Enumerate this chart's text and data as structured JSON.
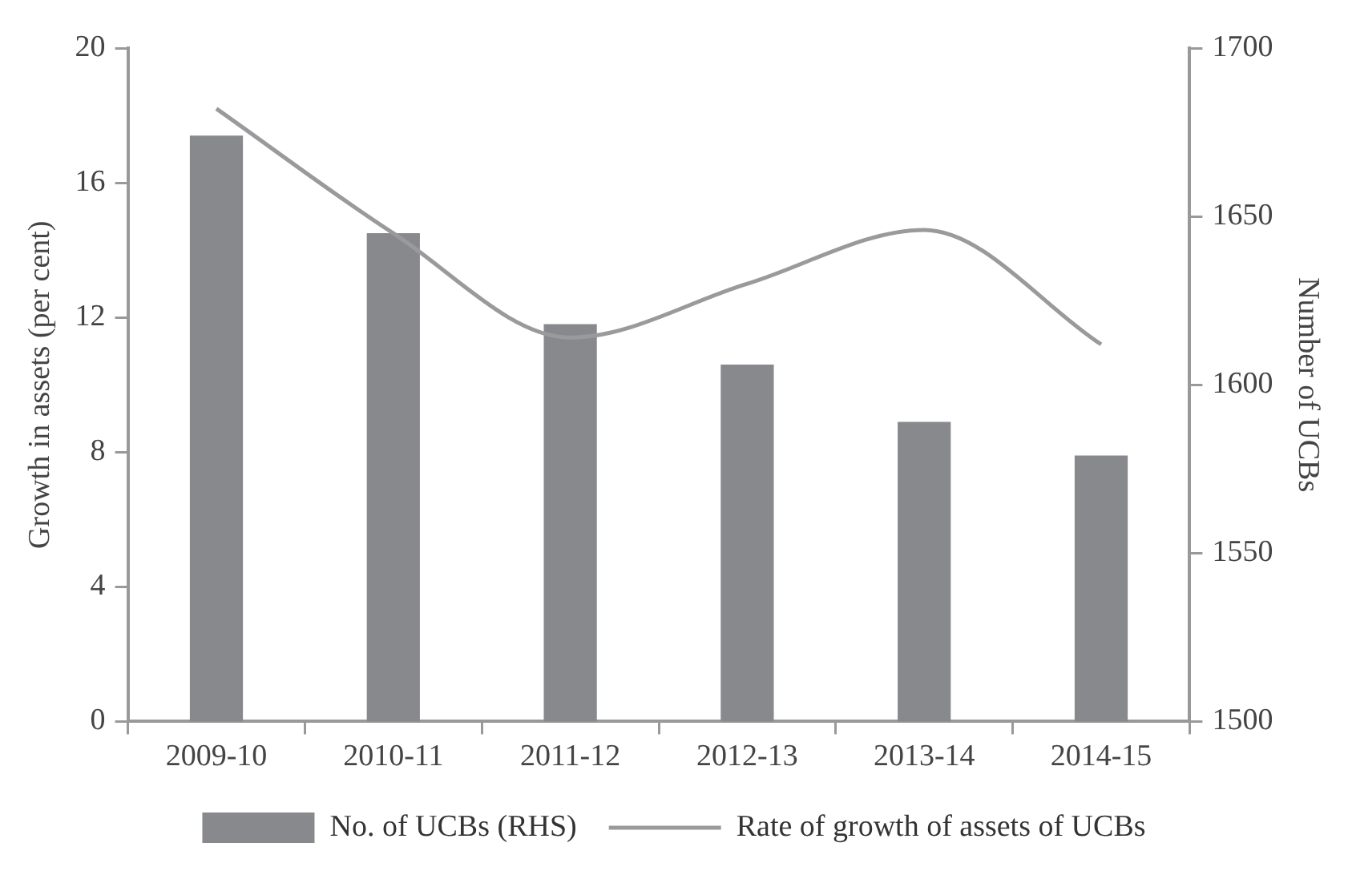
{
  "chart_data": {
    "type": "bar",
    "categories": [
      "2009-10",
      "2010-11",
      "2011-12",
      "2012-13",
      "2013-14",
      "2014-15"
    ],
    "ylabel": "Growth in assets (per cent)",
    "y2label": "Number of UCBs",
    "series": [
      {
        "name": "No. of UCBs (RHS)",
        "axis": "y2",
        "color": "#88898d",
        "values": [
          1674,
          1645,
          1618,
          1606,
          1589,
          1579
        ]
      },
      {
        "name": "Rate of growth of assets of UCBs",
        "type": "line",
        "color": "#9a9a9c",
        "values": [
          18.2,
          14.5,
          11.4,
          13.0,
          14.6,
          11.2
        ]
      }
    ],
    "ylim": [
      0,
      20
    ],
    "yticks": [
      0,
      4,
      8,
      12,
      16,
      20
    ],
    "y2lim": [
      1500,
      1700
    ],
    "y2ticks": [
      1500,
      1550,
      1600,
      1650,
      1700
    ],
    "legend": "bottom",
    "grid": false,
    "marker": "none",
    "line_style": "solid"
  }
}
